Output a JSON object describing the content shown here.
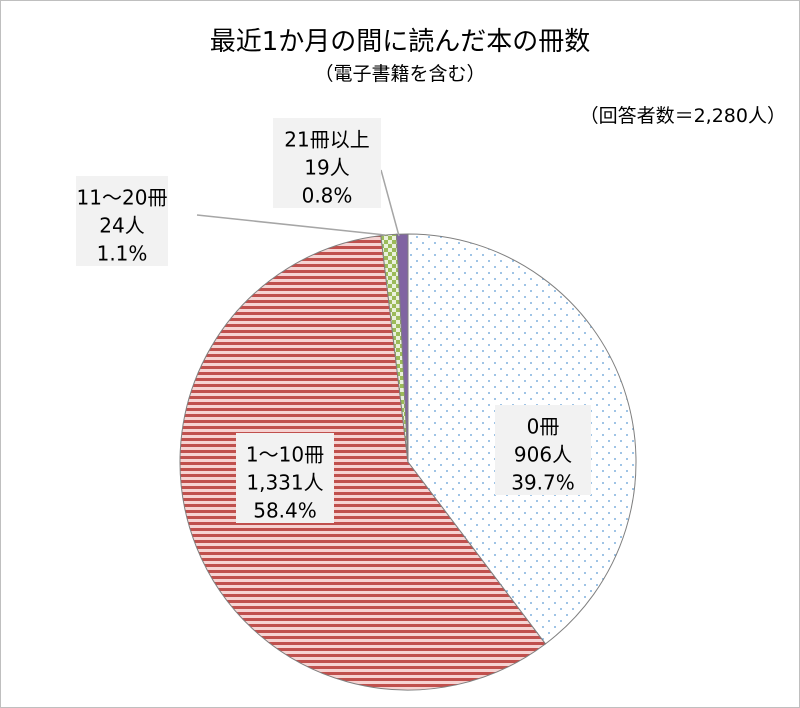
{
  "chart_data": {
    "type": "pie",
    "title": "最近1か月の間に読んだ本の冊数",
    "subtitle": "（電子書籍を含む）",
    "note": "（回答者数＝2,280人）",
    "start": "top",
    "direction": "clockwise",
    "legend": "none",
    "slices": [
      {
        "label": "0冊",
        "count": "906人",
        "percent": "39.7%",
        "value": 39.7,
        "pattern": "dots",
        "color": "#5b9bd5"
      },
      {
        "label": "1～10冊",
        "count": "1,331人",
        "percent": "58.4%",
        "value": 58.4,
        "pattern": "horizontal-stripes",
        "color": "#c0504d"
      },
      {
        "label": "11～20冊",
        "count": "24人",
        "percent": "1.1%",
        "value": 1.1,
        "pattern": "checkerboard",
        "color": "#9bbb59"
      },
      {
        "label": "21冊以上",
        "count": "19人",
        "percent": "0.8%",
        "value": 0.8,
        "pattern": "solid",
        "color": "#8064a2"
      }
    ]
  }
}
